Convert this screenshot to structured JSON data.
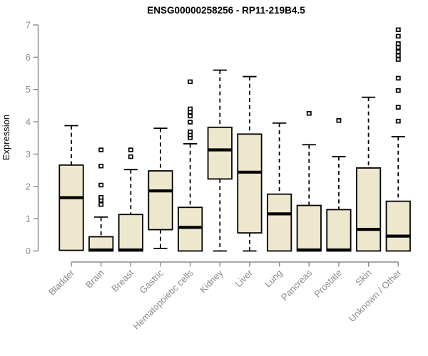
{
  "page": {
    "background": "#FFFFFF"
  },
  "chart_data": {
    "type": "boxplot",
    "title": "ENSG00000258256 - RP11-219B4.5",
    "ylabel": "Expression",
    "xlabel": "",
    "ylim": [
      0,
      7
    ],
    "yticks": [
      0,
      1,
      2,
      3,
      4,
      5,
      6,
      7
    ],
    "grid": false,
    "legend": false,
    "categories": [
      "Bladder",
      "Brain",
      "Breast",
      "Gastric",
      "Hematopoietic cells",
      "Kidney",
      "Liver",
      "Lung",
      "Pancreas",
      "Prostate",
      "Skin",
      "Unknown / Other"
    ],
    "series": [
      {
        "category": "Bladder",
        "whisker_low": 0.02,
        "q1": 0.02,
        "median": 1.65,
        "q3": 2.66,
        "whisker_high": 3.88,
        "outliers": []
      },
      {
        "category": "Brain",
        "whisker_low": 0,
        "q1": 0,
        "median": 0.03,
        "q3": 0.44,
        "whisker_high": 1.05,
        "outliers": [
          1.44,
          1.57,
          1.66,
          2.04,
          2.63,
          3.13
        ]
      },
      {
        "category": "Breast",
        "whisker_low": 0,
        "q1": 0,
        "median": 0.03,
        "q3": 1.13,
        "whisker_high": 2.52,
        "outliers": [
          2.92,
          3.13
        ]
      },
      {
        "category": "Gastric",
        "whisker_low": 0.08,
        "q1": 0.66,
        "median": 1.86,
        "q3": 2.48,
        "whisker_high": 3.8,
        "outliers": []
      },
      {
        "category": "Hematopoietic cells",
        "whisker_low": 0,
        "q1": 0,
        "median": 0.73,
        "q3": 1.35,
        "whisker_high": 3.32,
        "outliers": [
          3.51,
          3.6,
          3.69,
          3.99,
          4.18,
          4.3,
          4.4,
          5.24
        ]
      },
      {
        "category": "Kidney",
        "whisker_low": 0,
        "q1": 2.23,
        "median": 3.13,
        "q3": 3.83,
        "whisker_high": 5.6,
        "outliers": []
      },
      {
        "category": "Liver",
        "whisker_low": 0,
        "q1": 0.56,
        "median": 2.44,
        "q3": 3.62,
        "whisker_high": 5.4,
        "outliers": []
      },
      {
        "category": "Lung",
        "whisker_low": 0,
        "q1": 0,
        "median": 1.15,
        "q3": 1.76,
        "whisker_high": 3.96,
        "outliers": []
      },
      {
        "category": "Pancreas",
        "whisker_low": 0,
        "q1": 0,
        "median": 0.03,
        "q3": 1.41,
        "whisker_high": 3.29,
        "outliers": [
          4.26
        ]
      },
      {
        "category": "Prostate",
        "whisker_low": 0,
        "q1": 0,
        "median": 0.03,
        "q3": 1.28,
        "whisker_high": 2.92,
        "outliers": [
          4.04
        ]
      },
      {
        "category": "Skin",
        "whisker_low": 0,
        "q1": 0,
        "median": 0.67,
        "q3": 2.57,
        "whisker_high": 4.76,
        "outliers": []
      },
      {
        "category": "Unknown / Other",
        "whisker_low": 0,
        "q1": 0,
        "median": 0.46,
        "q3": 1.54,
        "whisker_high": 3.54,
        "outliers": [
          4.02,
          4.45,
          4.97,
          5.35,
          5.93,
          6.05,
          6.17,
          6.3,
          6.42,
          6.65,
          6.85
        ]
      }
    ],
    "colors": {
      "box_fill": "#EDE7CE",
      "box_stroke": "#000000",
      "median": "#000000",
      "whisker": "#000000",
      "outlier_fill": "#FFFFFF",
      "axis": "#8B8B8B",
      "tick_label": "#8B8B8B",
      "title": "#000000"
    }
  }
}
